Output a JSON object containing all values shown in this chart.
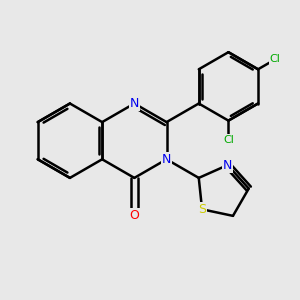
{
  "background_color": "#e8e8e8",
  "bond_color": "#000000",
  "bond_width": 1.8,
  "atom_colors": {
    "N": "#0000ee",
    "O": "#ff0000",
    "S": "#cccc00",
    "Cl": "#00aa00"
  },
  "figsize": [
    3.0,
    3.0
  ],
  "dpi": 100,
  "xlim": [
    -2.5,
    3.2
  ],
  "ylim": [
    -2.8,
    2.8
  ]
}
